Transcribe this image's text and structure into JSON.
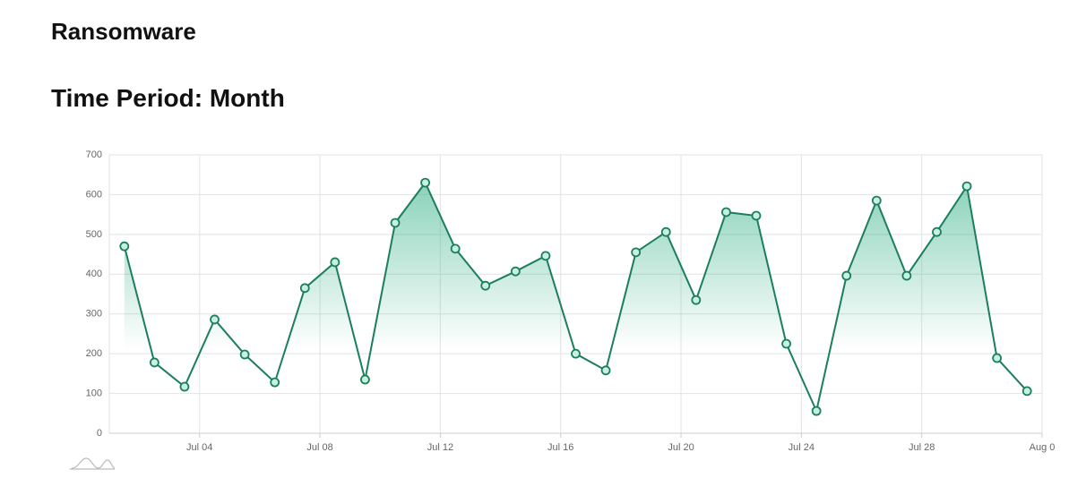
{
  "header": {
    "title": "Ransomware",
    "subtitle": "Time Period: Month"
  },
  "chart_data": {
    "type": "line",
    "x": [
      1.5,
      2.5,
      3.5,
      4.5,
      5.5,
      6.5,
      7.5,
      8.5,
      9.5,
      10.5,
      11.5,
      12.5,
      13.5,
      14.5,
      15.5,
      16.5,
      17.5,
      18.5,
      19.5,
      20.5,
      21.5,
      22.5,
      23.5,
      24.5,
      25.5,
      26.5,
      27.5,
      28.5,
      29.5,
      30.5,
      31.5
    ],
    "series": [
      {
        "name": "Ransomware",
        "color": "#1a7f5a",
        "values": [
          470,
          178,
          117,
          286,
          198,
          128,
          365,
          430,
          135,
          529,
          630,
          464,
          371,
          407,
          446,
          200,
          158,
          455,
          506,
          335,
          556,
          547,
          225,
          56,
          396,
          585,
          396,
          506,
          621,
          189,
          106
        ]
      }
    ],
    "xlim": [
      1,
      32
    ],
    "xticks": [
      {
        "value": 4,
        "label": "Jul 04"
      },
      {
        "value": 8,
        "label": "Jul 08"
      },
      {
        "value": 12,
        "label": "Jul 12"
      },
      {
        "value": 16,
        "label": "Jul 16"
      },
      {
        "value": 20,
        "label": "Jul 20"
      },
      {
        "value": 24,
        "label": "Jul 24"
      },
      {
        "value": 28,
        "label": "Jul 28"
      },
      {
        "value": 32,
        "label": "Aug 0"
      }
    ],
    "ylim": [
      0,
      700
    ],
    "yticks": [
      0,
      100,
      200,
      300,
      400,
      500,
      600,
      700
    ],
    "grid": true
  }
}
